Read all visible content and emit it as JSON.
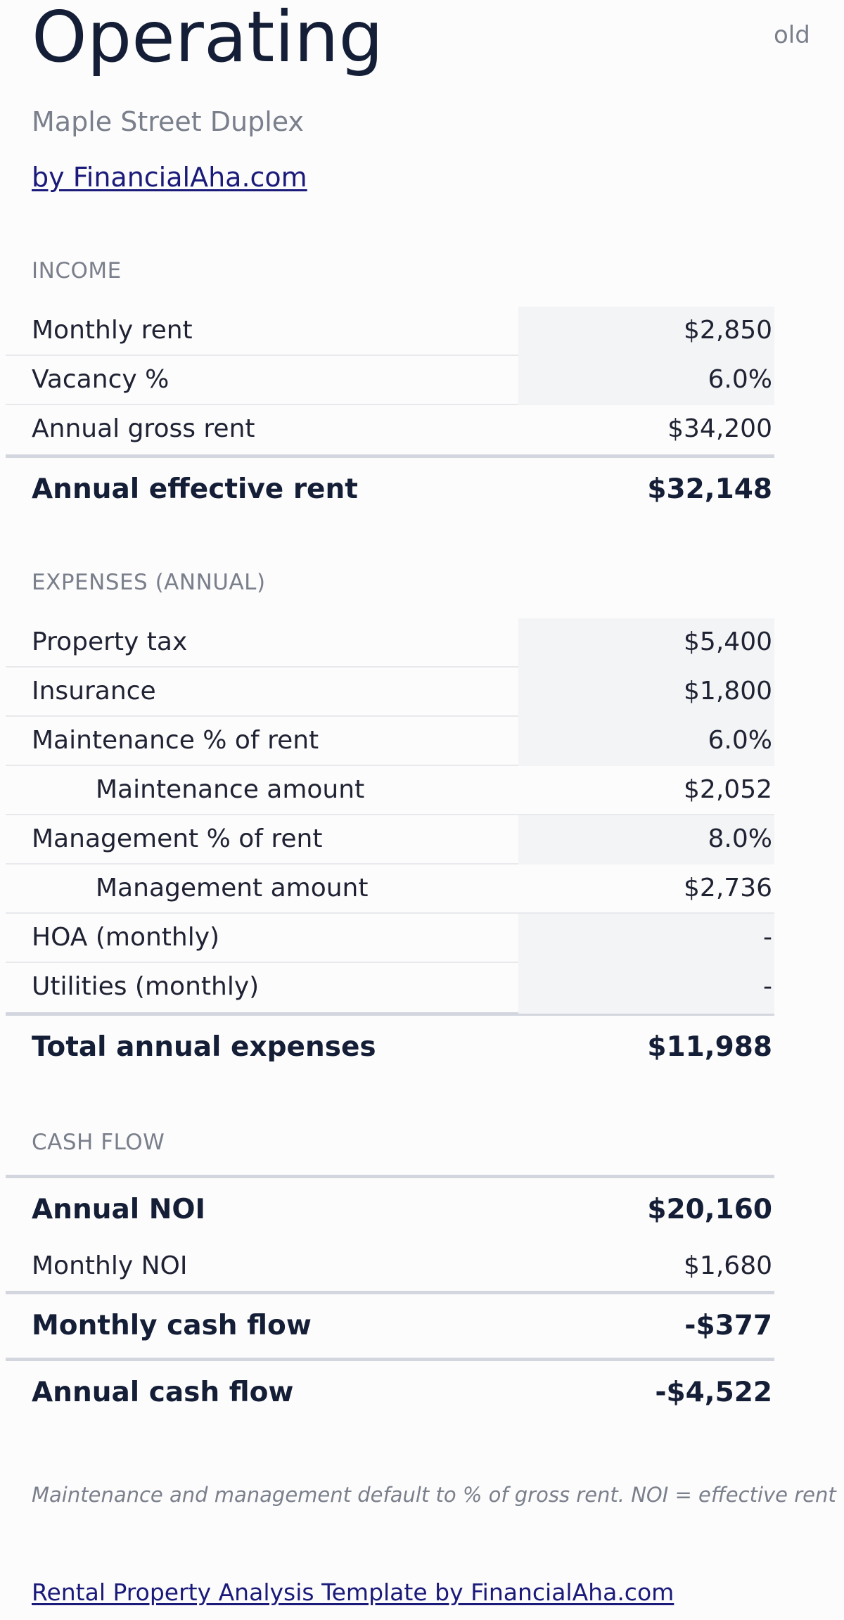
{
  "header": {
    "title": "Operating",
    "tag": "old",
    "property_name": "Maple Street Duplex",
    "byline": "by FinancialAha.com"
  },
  "income": {
    "section_label": "INCOME",
    "rows": [
      {
        "label": "Monthly rent",
        "value": "$2,850",
        "input": true
      },
      {
        "label": "Vacancy %",
        "value": "6.0%",
        "input": true
      },
      {
        "label": "Annual gross rent",
        "value": "$34,200",
        "input": false
      }
    ],
    "total": {
      "label": "Annual effective rent",
      "value": "$32,148"
    }
  },
  "expenses": {
    "section_label": "EXPENSES (ANNUAL)",
    "rows": [
      {
        "label": "Property tax",
        "value": "$5,400",
        "input": true
      },
      {
        "label": "Insurance",
        "value": "$1,800",
        "input": true
      },
      {
        "label": "Maintenance % of rent",
        "value": "6.0%",
        "input": true
      },
      {
        "label": "Maintenance amount",
        "value": "$2,052",
        "input": false
      },
      {
        "label": "Management % of rent",
        "value": "8.0%",
        "input": true
      },
      {
        "label": "Management amount",
        "value": "$2,736",
        "input": false
      },
      {
        "label": "HOA (monthly)",
        "value": "-",
        "input": true
      },
      {
        "label": "Utilities (monthly)",
        "value": "-",
        "input": true
      }
    ],
    "total": {
      "label": "Total annual expenses",
      "value": "$11,988"
    }
  },
  "cash_flow": {
    "section_label": "CASH FLOW",
    "annual_noi": {
      "label": "Annual NOI",
      "value": "$20,160"
    },
    "monthly_noi": {
      "label": "Monthly NOI",
      "value": "$1,680"
    },
    "monthly_cash_flow": {
      "label": "Monthly cash flow",
      "value": "-$377"
    },
    "annual_cash_flow": {
      "label": "Annual cash flow",
      "value": "-$4,522"
    }
  },
  "footnote": "Maintenance and management default to % of gross rent. NOI = effective rent",
  "footer": {
    "link_text": "Rental Property Analysis Template by FinancialAha.com"
  },
  "colors": {
    "title": "#141e36",
    "muted": "#7a7f8c",
    "link": "#1a1a7a",
    "input_cell_bg": "#f3f4f5",
    "divider": "#d3d6de"
  }
}
